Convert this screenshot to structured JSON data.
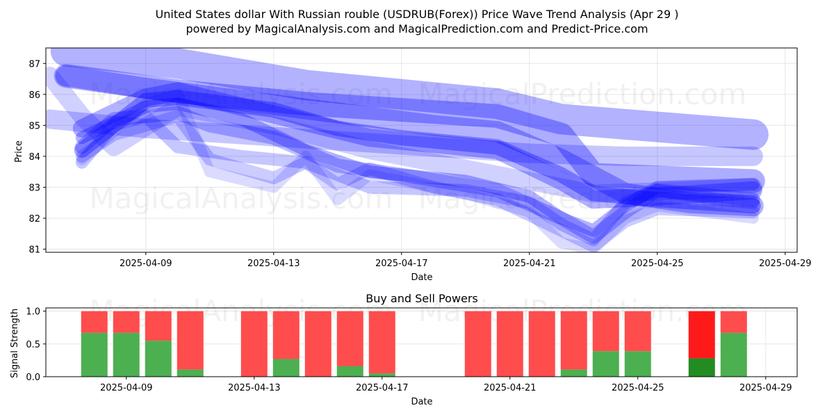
{
  "chart_data": [
    {
      "type": "line",
      "title": "United States dollar With Russian rouble (USDRUB(Forex)) Price Wave Trend Analysis (Apr 29 )",
      "subtitle": "powered by MagicalAnalysis.com and MagicalPrediction.com and Predict-Price.com",
      "xlabel": "Date",
      "ylabel": "Price",
      "x_ticks": [
        "2025-04-09",
        "2025-04-13",
        "2025-04-17",
        "2025-04-21",
        "2025-04-25",
        "2025-04-29"
      ],
      "y_ticks": [
        "81",
        "82",
        "83",
        "84",
        "85",
        "86",
        "87"
      ],
      "xlim": [
        "2025-04-05T21:00",
        "2025-04-29T09:00"
      ],
      "ylim": [
        80.9,
        87.5
      ],
      "grid": true,
      "series": [
        {
          "points": [
            [
              "2025-04-06",
              86.6
            ],
            [
              "2025-04-07",
              85.3
            ],
            [
              "2025-04-08",
              84.3
            ],
            [
              "2025-04-10",
              85.6
            ],
            [
              "2025-04-13",
              85.0
            ],
            [
              "2025-04-16",
              84.2
            ],
            [
              "2025-04-20",
              83.4
            ],
            [
              "2025-04-23",
              82.8
            ],
            [
              "2025-04-26",
              82.9
            ],
            [
              "2025-04-28",
              83.0
            ]
          ],
          "width": 26,
          "opacity": 0.18
        },
        {
          "points": [
            [
              "2025-04-06",
              85.2
            ],
            [
              "2025-04-09",
              84.9
            ],
            [
              "2025-04-12",
              84.7
            ],
            [
              "2025-04-15",
              84.5
            ],
            [
              "2025-04-18",
              84.3
            ],
            [
              "2025-04-21",
              84.1
            ],
            [
              "2025-04-24",
              84.0
            ],
            [
              "2025-04-28",
              84.0
            ]
          ],
          "width": 28,
          "opacity": 0.22
        },
        {
          "points": [
            [
              "2025-04-06T12:00",
              87.4
            ],
            [
              "2025-04-10",
              87.0
            ],
            [
              "2025-04-14",
              86.3
            ],
            [
              "2025-04-17",
              86.0
            ],
            [
              "2025-04-20",
              85.7
            ],
            [
              "2025-04-22",
              85.2
            ],
            [
              "2025-04-28",
              84.7
            ]
          ],
          "width": 44,
          "opacity": 0.3
        },
        {
          "points": [
            [
              "2025-04-06T12:00",
              86.6
            ],
            [
              "2025-04-10",
              86.1
            ],
            [
              "2025-04-14",
              85.7
            ],
            [
              "2025-04-17",
              85.5
            ],
            [
              "2025-04-20",
              85.3
            ],
            [
              "2025-04-22",
              84.7
            ],
            [
              "2025-04-23",
              83.4
            ],
            [
              "2025-04-28",
              83.2
            ]
          ],
          "width": 34,
          "opacity": 0.32
        },
        {
          "points": [
            [
              "2025-04-07",
              84.2
            ],
            [
              "2025-04-09",
              85.8
            ],
            [
              "2025-04-10",
              85.9
            ],
            [
              "2025-04-13",
              85.5
            ],
            [
              "2025-04-15",
              84.9
            ],
            [
              "2025-04-17",
              84.6
            ],
            [
              "2025-04-20",
              84.3
            ],
            [
              "2025-04-22",
              83.4
            ],
            [
              "2025-04-23",
              82.8
            ],
            [
              "2025-04-25",
              82.6
            ],
            [
              "2025-04-28",
              82.4
            ]
          ],
          "width": 22,
          "opacity": 0.34
        },
        {
          "points": [
            [
              "2025-04-07",
              84.6
            ],
            [
              "2025-04-09",
              85.6
            ],
            [
              "2025-04-10",
              85.7
            ],
            [
              "2025-04-12",
              85.2
            ],
            [
              "2025-04-14",
              84.2
            ],
            [
              "2025-04-16",
              83.5
            ],
            [
              "2025-04-19",
              83.2
            ],
            [
              "2025-04-21",
              82.7
            ],
            [
              "2025-04-22",
              82.0
            ],
            [
              "2025-04-23",
              81.6
            ],
            [
              "2025-04-24",
              82.4
            ],
            [
              "2025-04-25",
              83.0
            ],
            [
              "2025-04-28",
              83.1
            ]
          ],
          "width": 18,
          "opacity": 0.3
        },
        {
          "points": [
            [
              "2025-04-07",
              84.3
            ],
            [
              "2025-04-08",
              85.2
            ],
            [
              "2025-04-10",
              85.4
            ],
            [
              "2025-04-11",
              85.0
            ],
            [
              "2025-04-13",
              84.6
            ],
            [
              "2025-04-15",
              83.7
            ],
            [
              "2025-04-17",
              83.4
            ],
            [
              "2025-04-20",
              82.9
            ],
            [
              "2025-04-22",
              82.0
            ],
            [
              "2025-04-23",
              81.4
            ],
            [
              "2025-04-24",
              82.2
            ],
            [
              "2025-04-25",
              82.9
            ],
            [
              "2025-04-28",
              82.6
            ]
          ],
          "width": 20,
          "opacity": 0.26
        },
        {
          "points": [
            [
              "2025-04-07",
              84.0
            ],
            [
              "2025-04-08",
              84.7
            ],
            [
              "2025-04-10",
              85.3
            ],
            [
              "2025-04-11",
              83.9
            ],
            [
              "2025-04-13",
              83.3
            ],
            [
              "2025-04-14",
              83.8
            ],
            [
              "2025-04-15",
              83.1
            ],
            [
              "2025-04-16",
              83.6
            ],
            [
              "2025-04-18",
              83.0
            ],
            [
              "2025-04-20",
              82.6
            ],
            [
              "2025-04-22",
              81.6
            ],
            [
              "2025-04-23",
              81.1
            ],
            [
              "2025-04-24",
              81.9
            ],
            [
              "2025-04-25",
              82.3
            ],
            [
              "2025-04-28",
              82.2
            ]
          ],
          "width": 18,
          "opacity": 0.2
        },
        {
          "points": [
            [
              "2025-04-07",
              83.9
            ],
            [
              "2025-04-09",
              85.7
            ],
            [
              "2025-04-10",
              86.0
            ],
            [
              "2025-04-11",
              83.5
            ],
            [
              "2025-04-13",
              83.0
            ],
            [
              "2025-04-14",
              84.0
            ],
            [
              "2025-04-15",
              82.6
            ],
            [
              "2025-04-16",
              83.4
            ],
            [
              "2025-04-19",
              82.8
            ],
            [
              "2025-04-21",
              82.2
            ],
            [
              "2025-04-22",
              81.2
            ],
            [
              "2025-04-23",
              81.0
            ],
            [
              "2025-04-24",
              82.0
            ],
            [
              "2025-04-25",
              82.4
            ],
            [
              "2025-04-28",
              82.0
            ]
          ],
          "width": 16,
          "opacity": 0.14
        },
        {
          "points": [
            [
              "2025-04-07",
              83.8
            ],
            [
              "2025-04-08",
              85.0
            ],
            [
              "2025-04-09",
              85.3
            ],
            [
              "2025-04-10",
              84.3
            ],
            [
              "2025-04-12",
              84.0
            ],
            [
              "2025-04-14",
              83.8
            ],
            [
              "2025-04-16",
              83.0
            ],
            [
              "2025-04-19",
              82.9
            ],
            [
              "2025-04-21",
              82.5
            ],
            [
              "2025-04-22",
              81.8
            ],
            [
              "2025-04-23",
              81.3
            ],
            [
              "2025-04-24",
              82.5
            ],
            [
              "2025-04-25",
              82.9
            ],
            [
              "2025-04-27",
              82.6
            ],
            [
              "2025-04-28",
              82.5
            ]
          ],
          "width": 18,
          "opacity": 0.22
        },
        {
          "points": [
            [
              "2025-04-06T12:00",
              86.6
            ],
            [
              "2025-04-09",
              86.2
            ],
            [
              "2025-04-12",
              85.8
            ],
            [
              "2025-04-15",
              85.4
            ],
            [
              "2025-04-18",
              85.0
            ],
            [
              "2025-04-20",
              84.8
            ],
            [
              "2025-04-22",
              83.9
            ],
            [
              "2025-04-24",
              82.8
            ],
            [
              "2025-04-26",
              82.5
            ],
            [
              "2025-04-28",
              82.4
            ]
          ],
          "width": 30,
          "opacity": 0.3
        },
        {
          "points": [
            [
              "2025-04-07",
              84.9
            ],
            [
              "2025-04-09",
              85.9
            ],
            [
              "2025-04-10",
              86.1
            ],
            [
              "2025-04-12",
              85.6
            ],
            [
              "2025-04-14",
              85.1
            ],
            [
              "2025-04-16",
              84.6
            ],
            [
              "2025-04-18",
              84.4
            ],
            [
              "2025-04-20",
              84.2
            ],
            [
              "2025-04-22",
              83.2
            ],
            [
              "2025-04-23",
              82.6
            ],
            [
              "2025-04-25",
              82.7
            ],
            [
              "2025-04-28",
              82.9
            ]
          ],
          "width": 26,
          "opacity": 0.3
        }
      ]
    },
    {
      "type": "bar",
      "title": "Buy and Sell Powers",
      "xlabel": "Date",
      "ylabel": "Signal Strength",
      "x_ticks": [
        "2025-04-09",
        "2025-04-13",
        "2025-04-17",
        "2025-04-21",
        "2025-04-25",
        "2025-04-29"
      ],
      "y_ticks": [
        "0.0",
        "0.5",
        "1.0"
      ],
      "ylim": [
        0,
        1.05
      ],
      "grid": true,
      "series_colors": {
        "buy": "#4caf50",
        "sell": "#ff4c4c",
        "buy_strong": "#228b22",
        "sell_strong": "#ff1a1a"
      },
      "bars": [
        {
          "date": "2025-04-08",
          "buy": 0.67,
          "sell": 0.33
        },
        {
          "date": "2025-04-09",
          "buy": 0.67,
          "sell": 0.33
        },
        {
          "date": "2025-04-10",
          "buy": 0.55,
          "sell": 0.45
        },
        {
          "date": "2025-04-11",
          "buy": 0.11,
          "sell": 0.89
        },
        {
          "date": "2025-04-13",
          "buy": 0.0,
          "sell": 1.0
        },
        {
          "date": "2025-04-14",
          "buy": 0.27,
          "sell": 0.73
        },
        {
          "date": "2025-04-15",
          "buy": 0.0,
          "sell": 1.0
        },
        {
          "date": "2025-04-16",
          "buy": 0.16,
          "sell": 0.84
        },
        {
          "date": "2025-04-17",
          "buy": 0.05,
          "sell": 0.95
        },
        {
          "date": "2025-04-20",
          "buy": 0.0,
          "sell": 1.0
        },
        {
          "date": "2025-04-21",
          "buy": 0.0,
          "sell": 1.0
        },
        {
          "date": "2025-04-22",
          "buy": 0.0,
          "sell": 1.0
        },
        {
          "date": "2025-04-23",
          "buy": 0.11,
          "sell": 0.89
        },
        {
          "date": "2025-04-24",
          "buy": 0.39,
          "sell": 0.61
        },
        {
          "date": "2025-04-25",
          "buy": 0.39,
          "sell": 0.61
        },
        {
          "date": "2025-04-27",
          "buy": 0.28,
          "sell": 0.72,
          "strong": true
        },
        {
          "date": "2025-04-28",
          "buy": 0.67,
          "sell": 0.33
        }
      ]
    }
  ],
  "watermarks": [
    "MagicalAnalysis.com",
    "MagicalPrediction.com"
  ]
}
